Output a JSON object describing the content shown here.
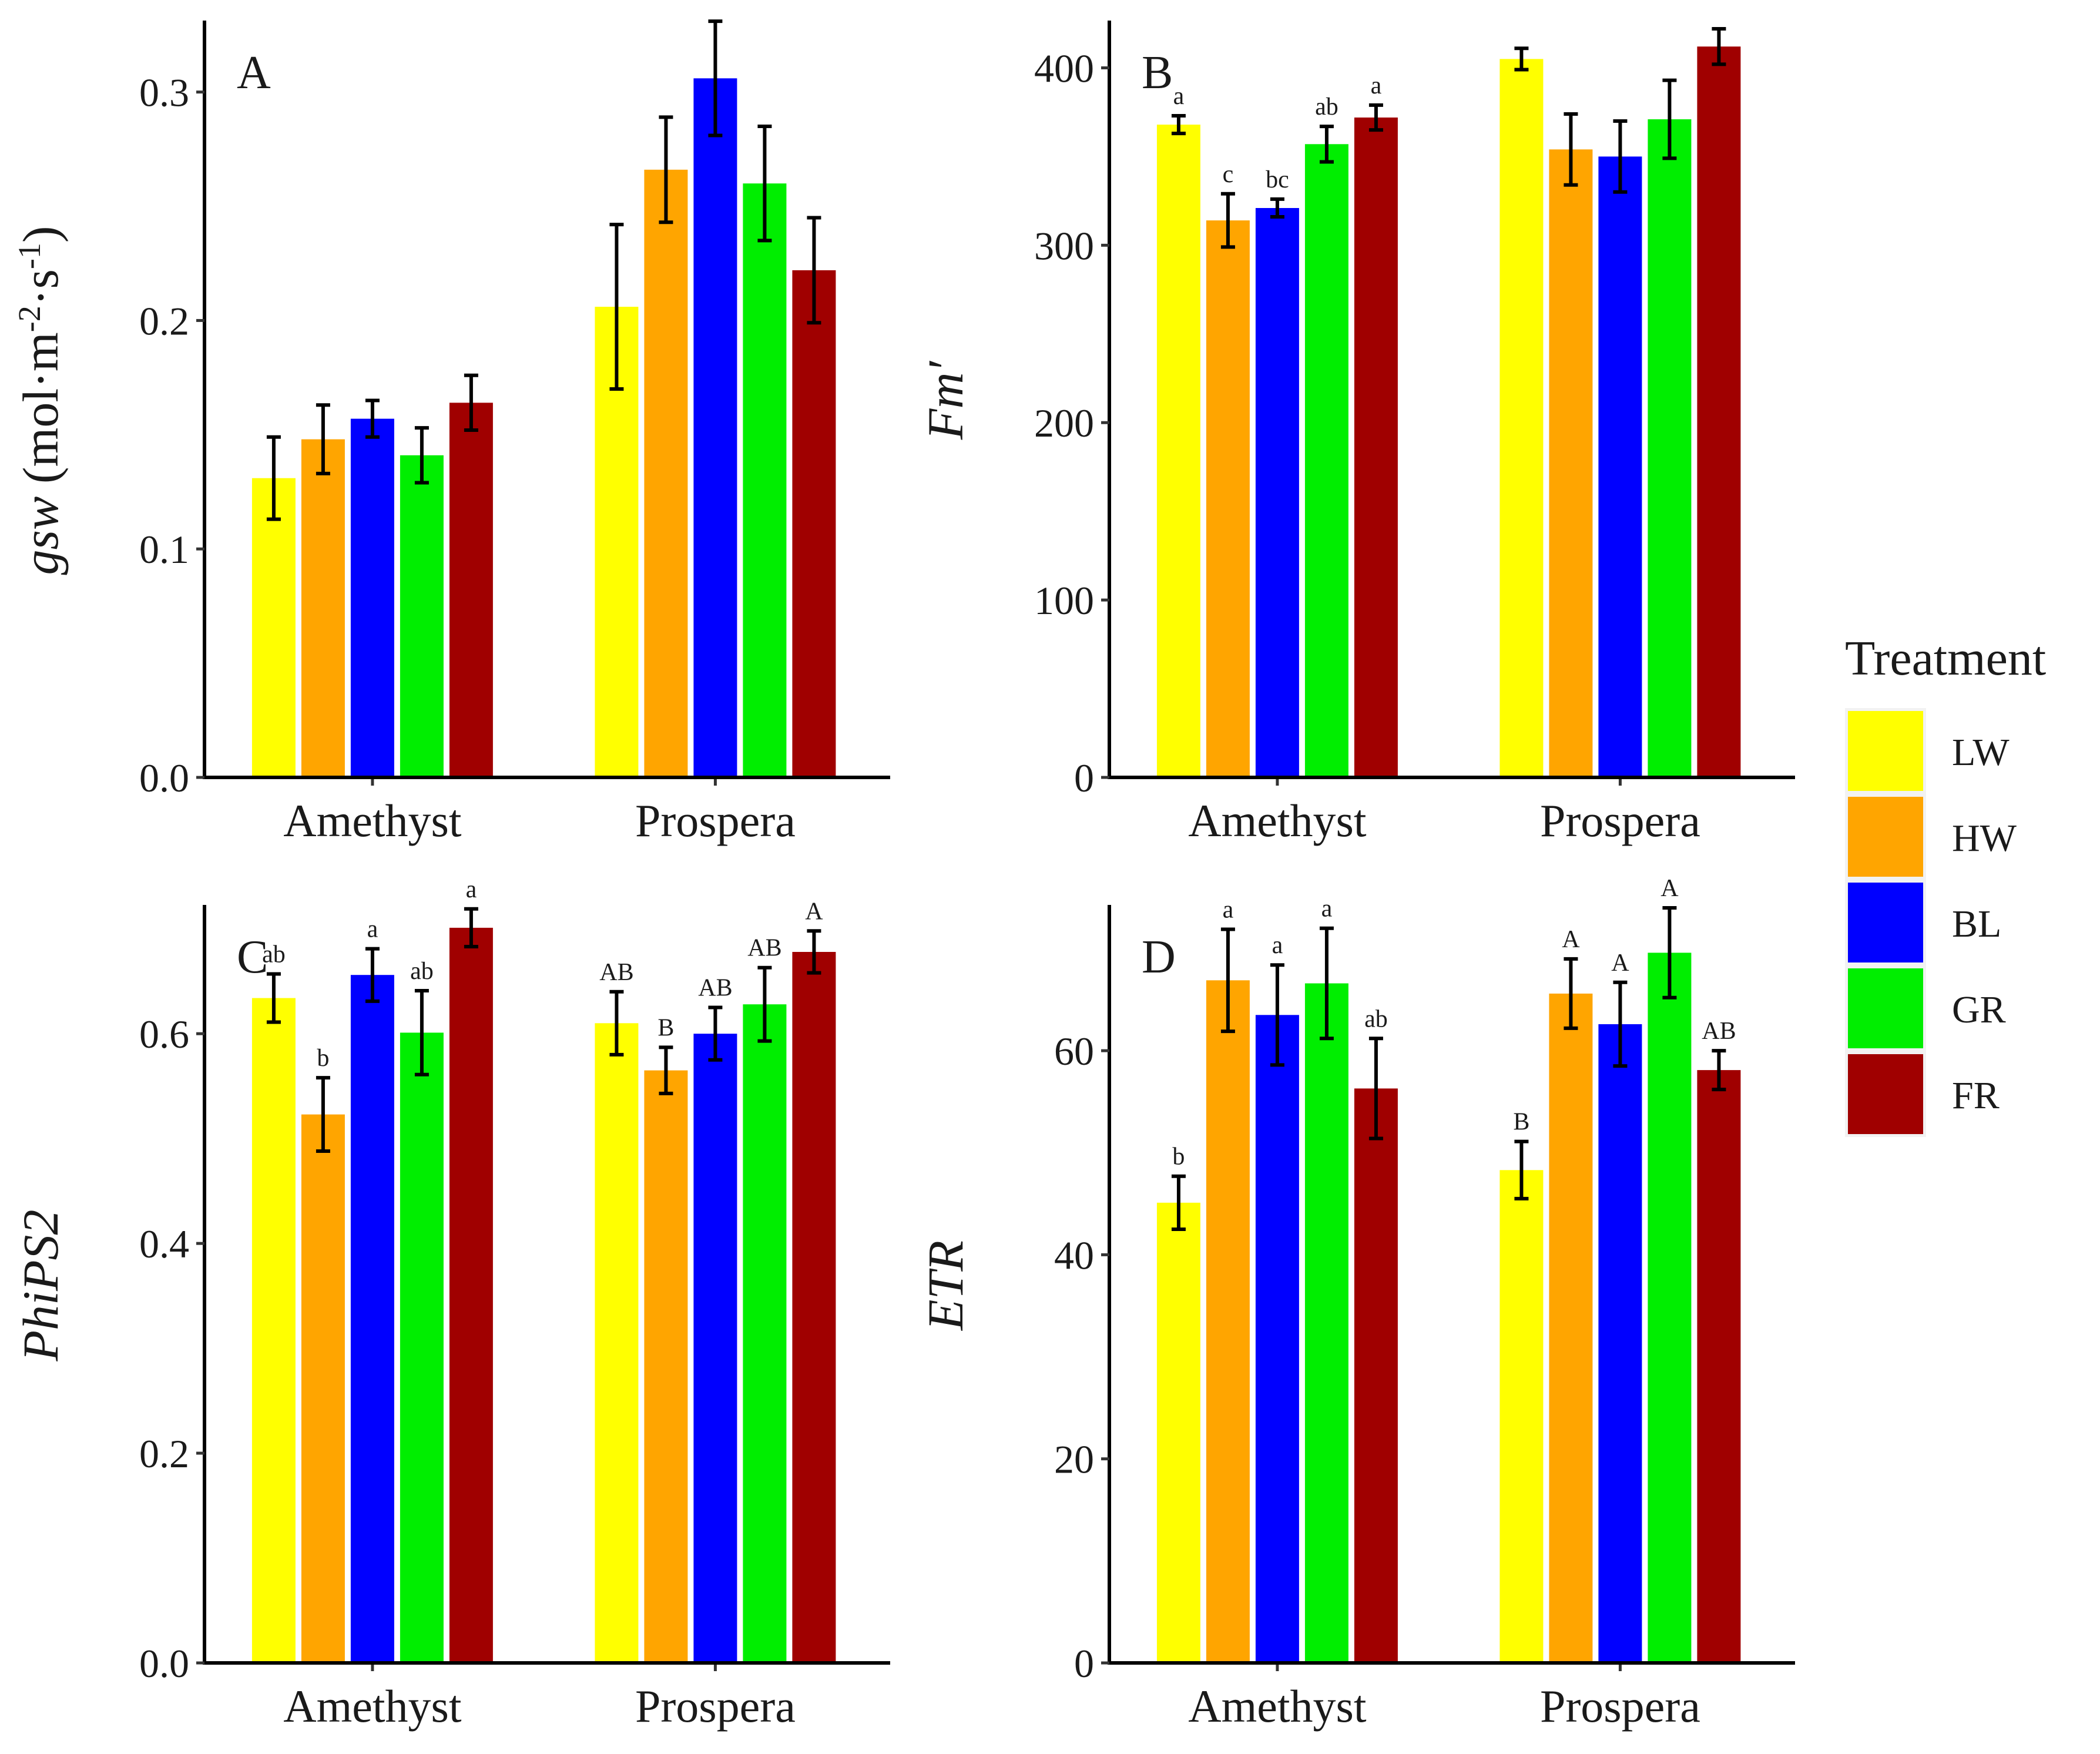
{
  "treatments": [
    {
      "name": "LW",
      "color": "#ffff00"
    },
    {
      "name": "HW",
      "color": "#ffa500"
    },
    {
      "name": "BL",
      "color": "#0000ff"
    },
    {
      "name": "GR",
      "color": "#00ee00"
    },
    {
      "name": "FR",
      "color": "#a00000"
    }
  ],
  "legend": {
    "title": "Treatment"
  },
  "chart_data": [
    {
      "panel": "A",
      "type": "bar",
      "ylabel": "gsw (mol·m-2·s-1)",
      "ylabel_main": "gsw",
      "ylabel_unit_prefix": " (mol·m",
      "ylabel_exp1": "-2",
      "ylabel_mid": "·s",
      "ylabel_exp2": "-1",
      "ylabel_close": ")",
      "ylim": [
        0,
        0.33
      ],
      "yticks": [
        0.0,
        0.1,
        0.2,
        0.3
      ],
      "ytick_labels": [
        "0.0",
        "0.1",
        "0.2",
        "0.3"
      ],
      "categories": [
        "Amethyst",
        "Prospera"
      ],
      "series": [
        {
          "name": "LW",
          "values": [
            0.131,
            0.206
          ],
          "errors": [
            0.018,
            0.036
          ],
          "labels": [
            "",
            ""
          ]
        },
        {
          "name": "HW",
          "values": [
            0.148,
            0.266
          ],
          "errors": [
            0.015,
            0.023
          ],
          "labels": [
            "",
            ""
          ]
        },
        {
          "name": "BL",
          "values": [
            0.157,
            0.306
          ],
          "errors": [
            0.008,
            0.025
          ],
          "labels": [
            "",
            ""
          ]
        },
        {
          "name": "GR",
          "values": [
            0.141,
            0.26
          ],
          "errors": [
            0.012,
            0.025
          ],
          "labels": [
            "",
            ""
          ]
        },
        {
          "name": "FR",
          "values": [
            0.164,
            0.222
          ],
          "errors": [
            0.012,
            0.023
          ],
          "labels": [
            "",
            ""
          ]
        }
      ]
    },
    {
      "panel": "B",
      "type": "bar",
      "ylabel": "Fm'",
      "ylabel_main": "Fm′",
      "ylim": [
        0,
        425
      ],
      "yticks": [
        0,
        100,
        200,
        300,
        400
      ],
      "ytick_labels": [
        "0",
        "100",
        "200",
        "300",
        "400"
      ],
      "categories": [
        "Amethyst",
        "Prospera"
      ],
      "series": [
        {
          "name": "LW",
          "values": [
            368,
            405
          ],
          "errors": [
            5,
            6
          ],
          "labels": [
            "a",
            ""
          ]
        },
        {
          "name": "HW",
          "values": [
            314,
            354
          ],
          "errors": [
            15,
            20
          ],
          "labels": [
            "c",
            ""
          ]
        },
        {
          "name": "BL",
          "values": [
            321,
            350
          ],
          "errors": [
            5,
            20
          ],
          "labels": [
            "bc",
            ""
          ]
        },
        {
          "name": "GR",
          "values": [
            357,
            371
          ],
          "errors": [
            10,
            22
          ],
          "labels": [
            "ab",
            ""
          ]
        },
        {
          "name": "FR",
          "values": [
            372,
            412
          ],
          "errors": [
            7,
            10
          ],
          "labels": [
            "a",
            ""
          ]
        }
      ]
    },
    {
      "panel": "C",
      "type": "bar",
      "ylabel": "PhiPS2",
      "ylabel_main": "PhiPS2",
      "ylim": [
        0,
        0.72
      ],
      "yticks": [
        0.0,
        0.2,
        0.4,
        0.6
      ],
      "ytick_labels": [
        "0.0",
        "0.2",
        "0.4",
        "0.6"
      ],
      "categories": [
        "Amethyst",
        "Prospera"
      ],
      "series": [
        {
          "name": "LW",
          "values": [
            0.634,
            0.61
          ],
          "errors": [
            0.023,
            0.03
          ],
          "labels": [
            "ab",
            "AB"
          ]
        },
        {
          "name": "HW",
          "values": [
            0.523,
            0.565
          ],
          "errors": [
            0.035,
            0.022
          ],
          "labels": [
            "b",
            "B"
          ]
        },
        {
          "name": "BL",
          "values": [
            0.656,
            0.6
          ],
          "errors": [
            0.025,
            0.025
          ],
          "labels": [
            "a",
            "AB"
          ]
        },
        {
          "name": "GR",
          "values": [
            0.601,
            0.628
          ],
          "errors": [
            0.04,
            0.035
          ],
          "labels": [
            "ab",
            "AB"
          ]
        },
        {
          "name": "FR",
          "values": [
            0.701,
            0.678
          ],
          "errors": [
            0.018,
            0.02
          ],
          "labels": [
            "a",
            "A"
          ]
        }
      ]
    },
    {
      "panel": "D",
      "type": "bar",
      "ylabel": "ETR",
      "ylabel_main": "ETR",
      "ylim": [
        0,
        74
      ],
      "yticks": [
        0,
        20,
        40,
        60
      ],
      "ytick_labels": [
        "0",
        "20",
        "40",
        "60"
      ],
      "categories": [
        "Amethyst",
        "Prospera"
      ],
      "series": [
        {
          "name": "LW",
          "values": [
            45.1,
            48.3
          ],
          "errors": [
            2.6,
            2.8
          ],
          "labels": [
            "b",
            "B"
          ]
        },
        {
          "name": "HW",
          "values": [
            66.9,
            65.6
          ],
          "errors": [
            5.0,
            3.4
          ],
          "labels": [
            "a",
            "A"
          ]
        },
        {
          "name": "BL",
          "values": [
            63.5,
            62.6
          ],
          "errors": [
            4.9,
            4.1
          ],
          "labels": [
            "a",
            "A"
          ]
        },
        {
          "name": "GR",
          "values": [
            66.6,
            69.6
          ],
          "errors": [
            5.4,
            4.4
          ],
          "labels": [
            "a",
            "A"
          ]
        },
        {
          "name": "FR",
          "values": [
            56.3,
            58.1
          ],
          "errors": [
            4.9,
            1.9
          ],
          "labels": [
            "ab",
            "AB"
          ]
        }
      ]
    }
  ]
}
